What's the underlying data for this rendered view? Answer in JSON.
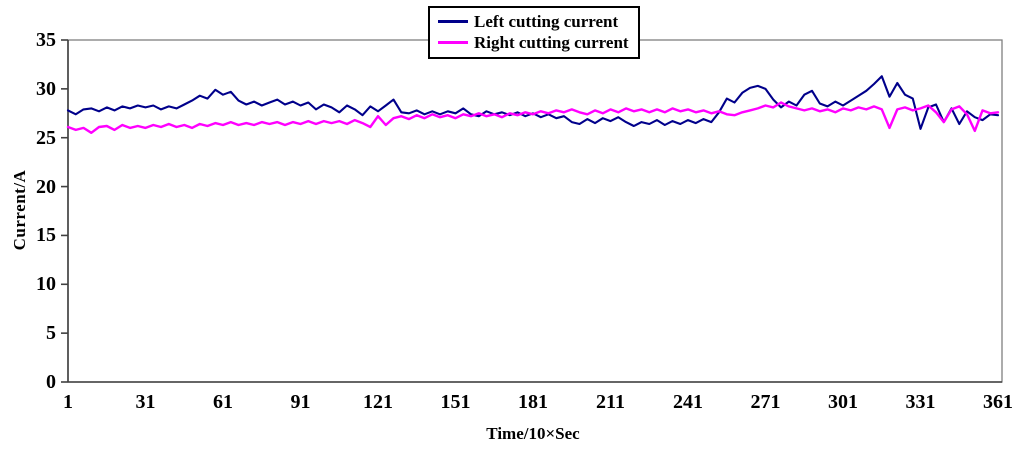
{
  "chart_data": {
    "type": "line",
    "title": "",
    "xlabel": "Time/10×Sec",
    "ylabel": "Current/A",
    "xlim": [
      1,
      361
    ],
    "ylim": [
      0,
      35
    ],
    "xticks": [
      1,
      31,
      61,
      91,
      121,
      151,
      181,
      211,
      241,
      271,
      301,
      331,
      361
    ],
    "yticks": [
      0,
      5,
      10,
      15,
      20,
      25,
      30,
      35
    ],
    "grid": false,
    "legend_position": "top-center",
    "axis_color": "#404040",
    "box_color": "#808080",
    "x": [
      1,
      4,
      7,
      10,
      13,
      16,
      19,
      22,
      25,
      28,
      31,
      34,
      37,
      40,
      43,
      46,
      49,
      52,
      55,
      58,
      61,
      64,
      67,
      70,
      73,
      76,
      79,
      82,
      85,
      88,
      91,
      94,
      97,
      100,
      103,
      106,
      109,
      112,
      115,
      118,
      121,
      124,
      127,
      130,
      133,
      136,
      139,
      142,
      145,
      148,
      151,
      154,
      157,
      160,
      163,
      166,
      169,
      172,
      175,
      178,
      181,
      184,
      187,
      190,
      193,
      196,
      199,
      202,
      205,
      208,
      211,
      214,
      217,
      220,
      223,
      226,
      229,
      232,
      235,
      238,
      241,
      244,
      247,
      250,
      253,
      256,
      259,
      262,
      265,
      268,
      271,
      274,
      277,
      280,
      283,
      286,
      289,
      292,
      295,
      298,
      301,
      304,
      307,
      310,
      313,
      316,
      319,
      322,
      325,
      328,
      331,
      334,
      337,
      340,
      343,
      346,
      349,
      352,
      355,
      358,
      361
    ],
    "series": [
      {
        "name": "Left cutting current",
        "color": "#00008b",
        "values": [
          27.8,
          27.4,
          27.9,
          28.0,
          27.7,
          28.1,
          27.8,
          28.2,
          28.0,
          28.3,
          28.1,
          28.3,
          27.9,
          28.2,
          28.0,
          28.4,
          28.8,
          29.3,
          29.0,
          29.9,
          29.4,
          29.7,
          28.8,
          28.4,
          28.7,
          28.3,
          28.6,
          28.9,
          28.4,
          28.7,
          28.3,
          28.6,
          27.9,
          28.4,
          28.1,
          27.6,
          28.3,
          27.9,
          27.3,
          28.2,
          27.7,
          28.3,
          28.9,
          27.6,
          27.5,
          27.8,
          27.4,
          27.7,
          27.4,
          27.7,
          27.5,
          28.0,
          27.4,
          27.2,
          27.7,
          27.4,
          27.6,
          27.3,
          27.6,
          27.2,
          27.5,
          27.1,
          27.4,
          27.0,
          27.2,
          26.6,
          26.4,
          26.9,
          26.5,
          27.0,
          26.7,
          27.1,
          26.6,
          26.2,
          26.6,
          26.4,
          26.8,
          26.3,
          26.7,
          26.4,
          26.8,
          26.5,
          26.9,
          26.6,
          27.6,
          29.0,
          28.6,
          29.6,
          30.1,
          30.3,
          30.0,
          28.9,
          28.1,
          28.7,
          28.3,
          29.4,
          29.8,
          28.5,
          28.2,
          28.7,
          28.3,
          28.8,
          29.3,
          29.8,
          30.5,
          31.3,
          29.2,
          30.6,
          29.4,
          29.0,
          25.9,
          28.1,
          28.4,
          26.6,
          28.0,
          26.4,
          27.7,
          27.1,
          26.8,
          27.4,
          27.3
        ]
      },
      {
        "name": "Right cutting current",
        "color": "#ff00ff",
        "values": [
          26.1,
          25.8,
          26.0,
          25.5,
          26.1,
          26.2,
          25.8,
          26.3,
          26.0,
          26.2,
          26.0,
          26.3,
          26.1,
          26.4,
          26.1,
          26.3,
          26.0,
          26.4,
          26.2,
          26.5,
          26.3,
          26.6,
          26.3,
          26.5,
          26.3,
          26.6,
          26.4,
          26.6,
          26.3,
          26.6,
          26.4,
          26.7,
          26.4,
          26.7,
          26.5,
          26.7,
          26.4,
          26.8,
          26.5,
          26.1,
          27.2,
          26.3,
          27.0,
          27.2,
          26.9,
          27.3,
          27.0,
          27.4,
          27.1,
          27.3,
          27.0,
          27.4,
          27.2,
          27.5,
          27.2,
          27.4,
          27.1,
          27.5,
          27.3,
          27.6,
          27.4,
          27.7,
          27.5,
          27.8,
          27.6,
          27.9,
          27.6,
          27.4,
          27.8,
          27.5,
          27.9,
          27.6,
          28.0,
          27.7,
          27.9,
          27.6,
          27.9,
          27.6,
          28.0,
          27.7,
          27.9,
          27.6,
          27.8,
          27.5,
          27.7,
          27.4,
          27.3,
          27.6,
          27.8,
          28.0,
          28.3,
          28.1,
          28.6,
          28.2,
          28.0,
          27.8,
          28.0,
          27.7,
          27.9,
          27.6,
          28.0,
          27.8,
          28.1,
          27.9,
          28.2,
          27.9,
          26.0,
          27.9,
          28.1,
          27.8,
          28.0,
          28.3,
          27.6,
          26.6,
          27.9,
          28.2,
          27.4,
          25.7,
          27.8,
          27.5,
          27.6
        ]
      }
    ]
  },
  "legend": {
    "items": [
      {
        "label": "Left cutting current"
      },
      {
        "label": "Right cutting current"
      }
    ]
  }
}
